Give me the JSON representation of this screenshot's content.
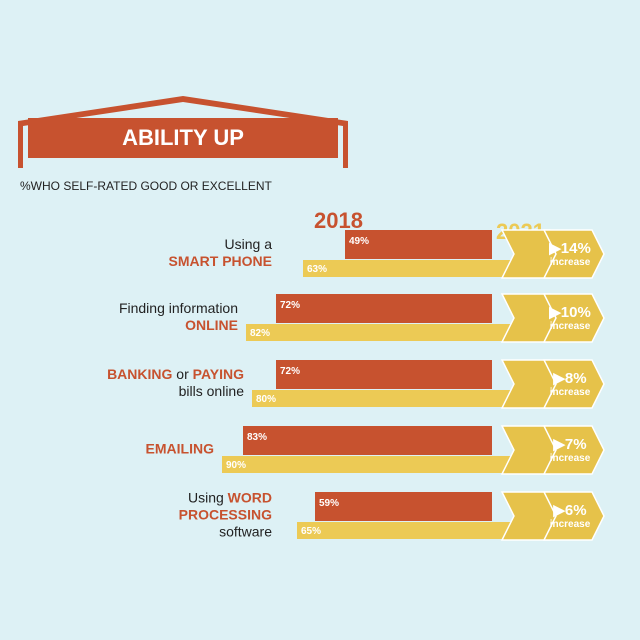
{
  "title": "ABILITY UP",
  "subtitle": "%WHO SELF-RATED GOOD OR EXCELLENT",
  "colors": {
    "background": "#ddf1f5",
    "bar_2018": "#c7522f",
    "bar_2021": "#ecca55",
    "arrow": "#e6c24a",
    "label_accent": "#c7522f",
    "text": "#222222"
  },
  "chart_data": {
    "type": "bar",
    "orientation": "horizontal",
    "title": "ABILITY UP",
    "subtitle": "%WHO SELF-RATED GOOD OR EXCELLENT",
    "legend": [
      "2018",
      "2021"
    ],
    "xlim": [
      0,
      100
    ],
    "categories": [
      {
        "lines": [
          [
            {
              "text": "Using a",
              "bold": false
            }
          ],
          [
            {
              "text": "SMART PHONE",
              "bold": true
            }
          ]
        ]
      },
      {
        "lines": [
          [
            {
              "text": "Finding information",
              "bold": false
            }
          ],
          [
            {
              "text": "ONLINE",
              "bold": true
            }
          ]
        ]
      },
      {
        "lines": [
          [
            {
              "text": "BANKING",
              "bold": true
            },
            {
              "text": " or ",
              "bold": false
            },
            {
              "text": "PAYING",
              "bold": true
            }
          ],
          [
            {
              "text": "bills online",
              "bold": false
            }
          ]
        ]
      },
      {
        "lines": [
          [
            {
              "text": "EMAILING",
              "bold": true
            }
          ]
        ]
      },
      {
        "lines": [
          [
            {
              "text": "Using ",
              "bold": false
            },
            {
              "text": "WORD",
              "bold": true
            }
          ],
          [
            {
              "text": "PROCESSING",
              "bold": true
            }
          ],
          [
            {
              "text": "software",
              "bold": false
            }
          ]
        ]
      }
    ],
    "series": [
      {
        "name": "2018",
        "values": [
          49,
          72,
          72,
          83,
          59
        ],
        "labels": [
          "49%",
          "72%",
          "72%",
          "83%",
          "59%"
        ]
      },
      {
        "name": "2021",
        "values": [
          63,
          82,
          80,
          90,
          65
        ],
        "labels": [
          "63%",
          "82%",
          "80%",
          "90%",
          "65%"
        ]
      }
    ],
    "increases": [
      {
        "value": "14%",
        "label": "increase"
      },
      {
        "value": "10%",
        "label": "increase"
      },
      {
        "value": "8%",
        "label": "increase"
      },
      {
        "value": "7%",
        "label": "increase"
      },
      {
        "value": "6%",
        "label": "increase"
      }
    ]
  }
}
